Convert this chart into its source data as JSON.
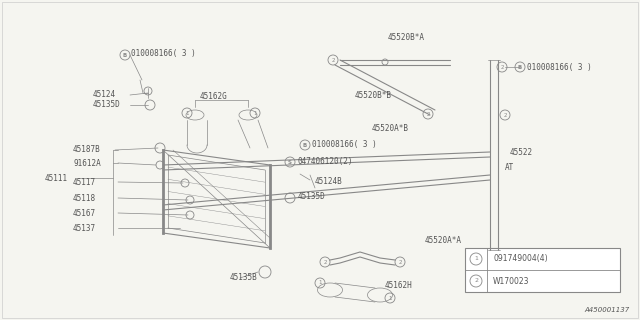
{
  "background_color": "#f5f5f0",
  "diagram_color": "#888888",
  "text_color": "#555555",
  "part_number": "A450001137",
  "legend": [
    {
      "symbol": "1",
      "text": "091749004(4)"
    },
    {
      "symbol": "2",
      "text": "W170023"
    }
  ]
}
